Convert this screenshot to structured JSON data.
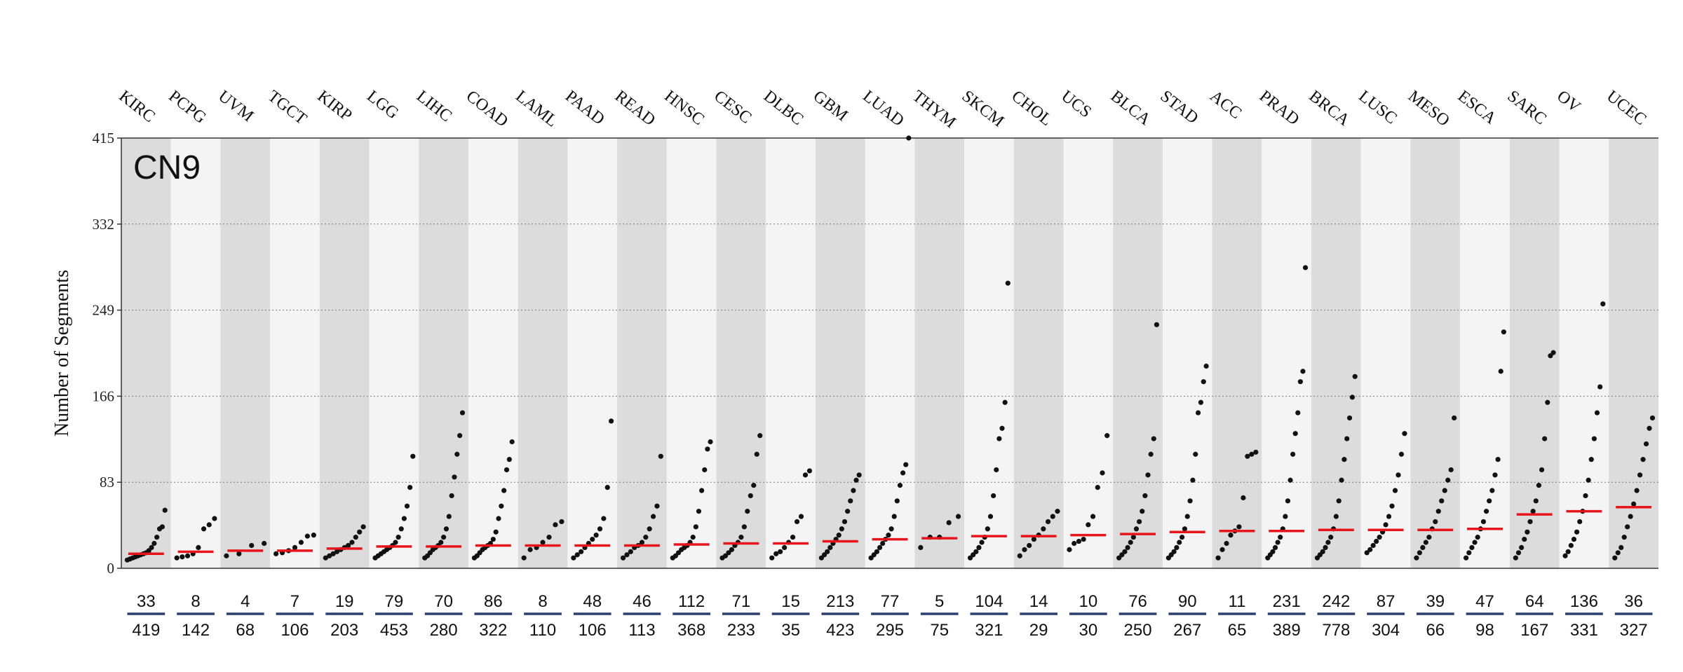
{
  "chart_data": {
    "type": "strip",
    "annotation": "CN9",
    "y_label": "Number of Segments",
    "categories": [
      "KIRC",
      "PCPG",
      "UVM",
      "TGCT",
      "KIRP",
      "LGG",
      "LIHC",
      "COAD",
      "LAML",
      "PAAD",
      "READ",
      "HNSC",
      "CESC",
      "DLBC",
      "GBM",
      "LUAD",
      "THYM",
      "SKCM",
      "CHOL",
      "UCS",
      "BLCA",
      "STAD",
      "ACC",
      "PRAD",
      "BRCA",
      "LUSC",
      "MESO",
      "ESCA",
      "SARC",
      "OV",
      "UCEC"
    ],
    "counts": [
      33,
      8,
      4,
      7,
      19,
      79,
      70,
      86,
      8,
      48,
      46,
      112,
      71,
      15,
      213,
      77,
      5,
      104,
      14,
      10,
      76,
      90,
      11,
      231,
      242,
      87,
      39,
      47,
      64,
      136,
      36
    ],
    "totals": [
      419,
      142,
      68,
      106,
      203,
      453,
      280,
      322,
      110,
      106,
      113,
      368,
      233,
      35,
      423,
      295,
      75,
      321,
      29,
      30,
      250,
      267,
      65,
      389,
      778,
      304,
      66,
      98,
      167,
      331,
      327
    ],
    "medians": [
      14,
      16,
      17,
      17,
      19,
      21,
      21,
      22,
      22,
      22,
      22,
      23,
      24,
      24,
      26,
      28,
      29,
      31,
      31,
      32,
      33,
      35,
      36,
      36,
      37,
      37,
      37,
      38,
      52,
      55,
      59
    ],
    "points": [
      [
        8,
        9,
        10,
        11,
        12,
        13,
        14,
        15,
        17,
        20,
        24,
        30,
        38,
        40,
        56
      ],
      [
        10,
        11,
        12,
        14,
        20,
        38,
        42,
        48
      ],
      [
        12,
        14,
        22,
        24
      ],
      [
        14,
        15,
        17,
        20,
        25,
        31,
        32
      ],
      [
        10,
        12,
        14,
        16,
        18,
        20,
        22,
        25,
        30,
        35,
        40
      ],
      [
        10,
        12,
        14,
        16,
        18,
        20,
        22,
        25,
        30,
        38,
        48,
        60,
        78,
        108
      ],
      [
        10,
        12,
        15,
        18,
        20,
        22,
        25,
        30,
        38,
        50,
        70,
        88,
        110,
        128,
        150
      ],
      [
        10,
        12,
        15,
        18,
        20,
        22,
        24,
        28,
        35,
        48,
        60,
        75,
        95,
        105,
        122
      ],
      [
        10,
        18,
        20,
        25,
        30,
        42,
        45
      ],
      [
        10,
        13,
        16,
        20,
        24,
        28,
        32,
        38,
        48,
        78,
        142
      ],
      [
        10,
        13,
        16,
        20,
        22,
        25,
        30,
        38,
        50,
        60,
        108
      ],
      [
        10,
        12,
        15,
        18,
        20,
        22,
        25,
        30,
        40,
        55,
        75,
        95,
        115,
        122
      ],
      [
        10,
        12,
        15,
        18,
        22,
        25,
        30,
        40,
        55,
        70,
        80,
        110,
        128
      ],
      [
        10,
        14,
        16,
        20,
        25,
        30,
        45,
        50,
        90,
        94
      ],
      [
        10,
        13,
        16,
        20,
        24,
        28,
        32,
        38,
        45,
        55,
        65,
        75,
        85,
        90
      ],
      [
        10,
        13,
        16,
        20,
        24,
        28,
        32,
        38,
        50,
        65,
        80,
        92,
        100,
        415
      ],
      [
        20,
        30,
        30,
        44,
        50
      ],
      [
        10,
        13,
        16,
        20,
        25,
        30,
        38,
        50,
        70,
        95,
        125,
        135,
        160,
        275
      ],
      [
        12,
        18,
        22,
        28,
        32,
        38,
        45,
        50,
        55
      ],
      [
        18,
        24,
        26,
        28,
        42,
        50,
        78,
        92,
        128
      ],
      [
        10,
        13,
        16,
        20,
        25,
        30,
        38,
        45,
        55,
        70,
        90,
        110,
        125,
        235
      ],
      [
        10,
        13,
        16,
        20,
        25,
        30,
        38,
        50,
        65,
        85,
        110,
        150,
        160,
        180,
        195
      ],
      [
        10,
        18,
        24,
        32,
        36,
        40,
        68,
        108,
        110,
        112
      ],
      [
        10,
        13,
        16,
        20,
        25,
        30,
        38,
        50,
        65,
        85,
        110,
        130,
        150,
        180,
        190,
        290
      ],
      [
        10,
        13,
        16,
        20,
        25,
        30,
        38,
        50,
        65,
        85,
        105,
        125,
        145,
        165,
        185
      ],
      [
        15,
        18,
        22,
        26,
        30,
        35,
        42,
        50,
        60,
        75,
        90,
        110,
        130
      ],
      [
        10,
        15,
        20,
        25,
        30,
        38,
        45,
        55,
        65,
        75,
        85,
        95,
        145
      ],
      [
        10,
        15,
        20,
        25,
        30,
        38,
        45,
        55,
        65,
        75,
        90,
        105,
        190,
        228
      ],
      [
        10,
        15,
        20,
        28,
        35,
        45,
        55,
        65,
        80,
        95,
        125,
        160,
        205,
        208
      ],
      [
        12,
        16,
        22,
        28,
        35,
        45,
        55,
        70,
        85,
        105,
        125,
        150,
        175,
        255
      ],
      [
        10,
        15,
        20,
        30,
        40,
        50,
        62,
        75,
        90,
        105,
        120,
        135,
        145
      ]
    ],
    "ylim": [
      0,
      415
    ],
    "yticks": [
      0,
      83,
      166,
      249,
      332,
      415
    ],
    "grid": true,
    "stripe_colors": [
      "#dcdcdc",
      "#f4f4f4"
    ],
    "point_color": "#111111",
    "median_color": "#e8141c",
    "divider_color": "#2a3f6e"
  }
}
